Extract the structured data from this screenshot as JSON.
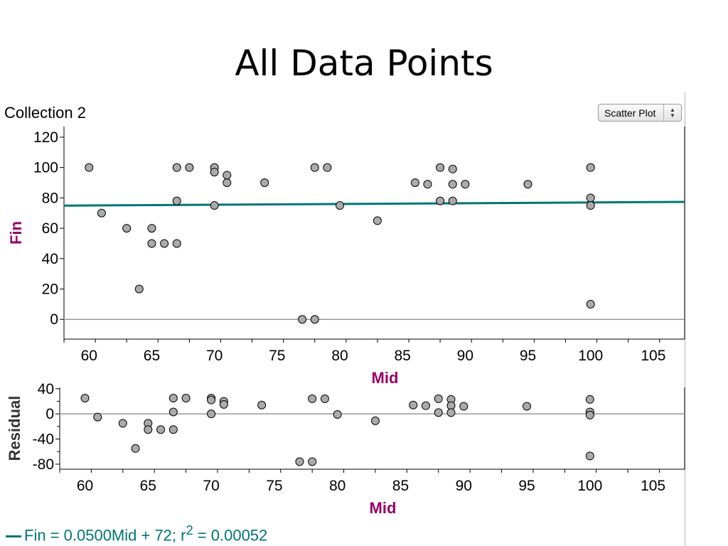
{
  "slide_title": "All Data Points",
  "collection_name": "Collection 2",
  "plot_type_label": "Scatter Plot",
  "colors": {
    "regression_line": "#007575",
    "axis_title": "#990066",
    "point_fill": "#aaaaaa",
    "point_stroke": "#000000"
  },
  "icons": {
    "plot_type_arrows": "up-down-arrows-icon"
  },
  "equation": {
    "lhs": "Fin = 0.0500Mid + 72; r",
    "exp": "2",
    "rhs": " = 0.00052"
  },
  "chart_data": [
    {
      "type": "scatter",
      "title": "",
      "xlabel": "Mid",
      "ylabel": "Fin",
      "xlim": [
        58,
        107.5
      ],
      "ylim": [
        -13,
        127
      ],
      "xticks": [
        60,
        65,
        70,
        75,
        80,
        85,
        90,
        95,
        100,
        105
      ],
      "yticks": [
        0,
        20,
        40,
        60,
        80,
        100,
        120
      ],
      "grid": false,
      "regression": {
        "slope": 0.05,
        "intercept": 72
      },
      "points": [
        {
          "x": 60,
          "y": 100
        },
        {
          "x": 61,
          "y": 70
        },
        {
          "x": 63,
          "y": 60
        },
        {
          "x": 64,
          "y": 20
        },
        {
          "x": 65,
          "y": 60
        },
        {
          "x": 65,
          "y": 50
        },
        {
          "x": 66,
          "y": 50
        },
        {
          "x": 67,
          "y": 100
        },
        {
          "x": 67,
          "y": 78
        },
        {
          "x": 67,
          "y": 50
        },
        {
          "x": 68,
          "y": 100
        },
        {
          "x": 70,
          "y": 100
        },
        {
          "x": 70,
          "y": 97
        },
        {
          "x": 70,
          "y": 75
        },
        {
          "x": 71,
          "y": 95
        },
        {
          "x": 71,
          "y": 90
        },
        {
          "x": 74,
          "y": 90
        },
        {
          "x": 77,
          "y": 0
        },
        {
          "x": 78,
          "y": 100
        },
        {
          "x": 78,
          "y": 0
        },
        {
          "x": 79,
          "y": 100
        },
        {
          "x": 80,
          "y": 75
        },
        {
          "x": 83,
          "y": 65
        },
        {
          "x": 86,
          "y": 90
        },
        {
          "x": 87,
          "y": 89
        },
        {
          "x": 88,
          "y": 100
        },
        {
          "x": 88,
          "y": 78
        },
        {
          "x": 89,
          "y": 99
        },
        {
          "x": 89,
          "y": 89
        },
        {
          "x": 89,
          "y": 78
        },
        {
          "x": 90,
          "y": 89
        },
        {
          "x": 95,
          "y": 89
        },
        {
          "x": 100,
          "y": 100
        },
        {
          "x": 100,
          "y": 80
        },
        {
          "x": 100,
          "y": 75
        },
        {
          "x": 100,
          "y": 10
        }
      ]
    },
    {
      "type": "scatter",
      "title": "",
      "xlabel": "Mid",
      "ylabel": "Residual",
      "xlim": [
        58,
        107.5
      ],
      "ylim": [
        -88,
        42
      ],
      "xticks": [
        60,
        65,
        70,
        75,
        80,
        85,
        90,
        95,
        100,
        105
      ],
      "yticks": [
        40,
        0,
        -40,
        -80
      ],
      "ytick_labels": [
        "40",
        "0",
        "-40",
        "-80"
      ],
      "grid": false,
      "points": [
        {
          "x": 60,
          "y": 25
        },
        {
          "x": 61,
          "y": -5
        },
        {
          "x": 63,
          "y": -15
        },
        {
          "x": 64,
          "y": -55
        },
        {
          "x": 65,
          "y": -15
        },
        {
          "x": 65,
          "y": -25
        },
        {
          "x": 66,
          "y": -25
        },
        {
          "x": 67,
          "y": 25
        },
        {
          "x": 67,
          "y": 3
        },
        {
          "x": 67,
          "y": -25
        },
        {
          "x": 68,
          "y": 25
        },
        {
          "x": 70,
          "y": 25
        },
        {
          "x": 70,
          "y": 22
        },
        {
          "x": 70,
          "y": 0
        },
        {
          "x": 71,
          "y": 20
        },
        {
          "x": 71,
          "y": 15
        },
        {
          "x": 74,
          "y": 14
        },
        {
          "x": 77,
          "y": -76
        },
        {
          "x": 78,
          "y": 24
        },
        {
          "x": 78,
          "y": -76
        },
        {
          "x": 79,
          "y": 24
        },
        {
          "x": 80,
          "y": -1
        },
        {
          "x": 83,
          "y": -11
        },
        {
          "x": 86,
          "y": 14
        },
        {
          "x": 87,
          "y": 13
        },
        {
          "x": 88,
          "y": 24
        },
        {
          "x": 88,
          "y": 2
        },
        {
          "x": 89,
          "y": 23
        },
        {
          "x": 89,
          "y": 13
        },
        {
          "x": 89,
          "y": 2
        },
        {
          "x": 90,
          "y": 12
        },
        {
          "x": 95,
          "y": 12
        },
        {
          "x": 100,
          "y": 23
        },
        {
          "x": 100,
          "y": 3
        },
        {
          "x": 100,
          "y": -2
        },
        {
          "x": 100,
          "y": -67
        }
      ]
    }
  ]
}
